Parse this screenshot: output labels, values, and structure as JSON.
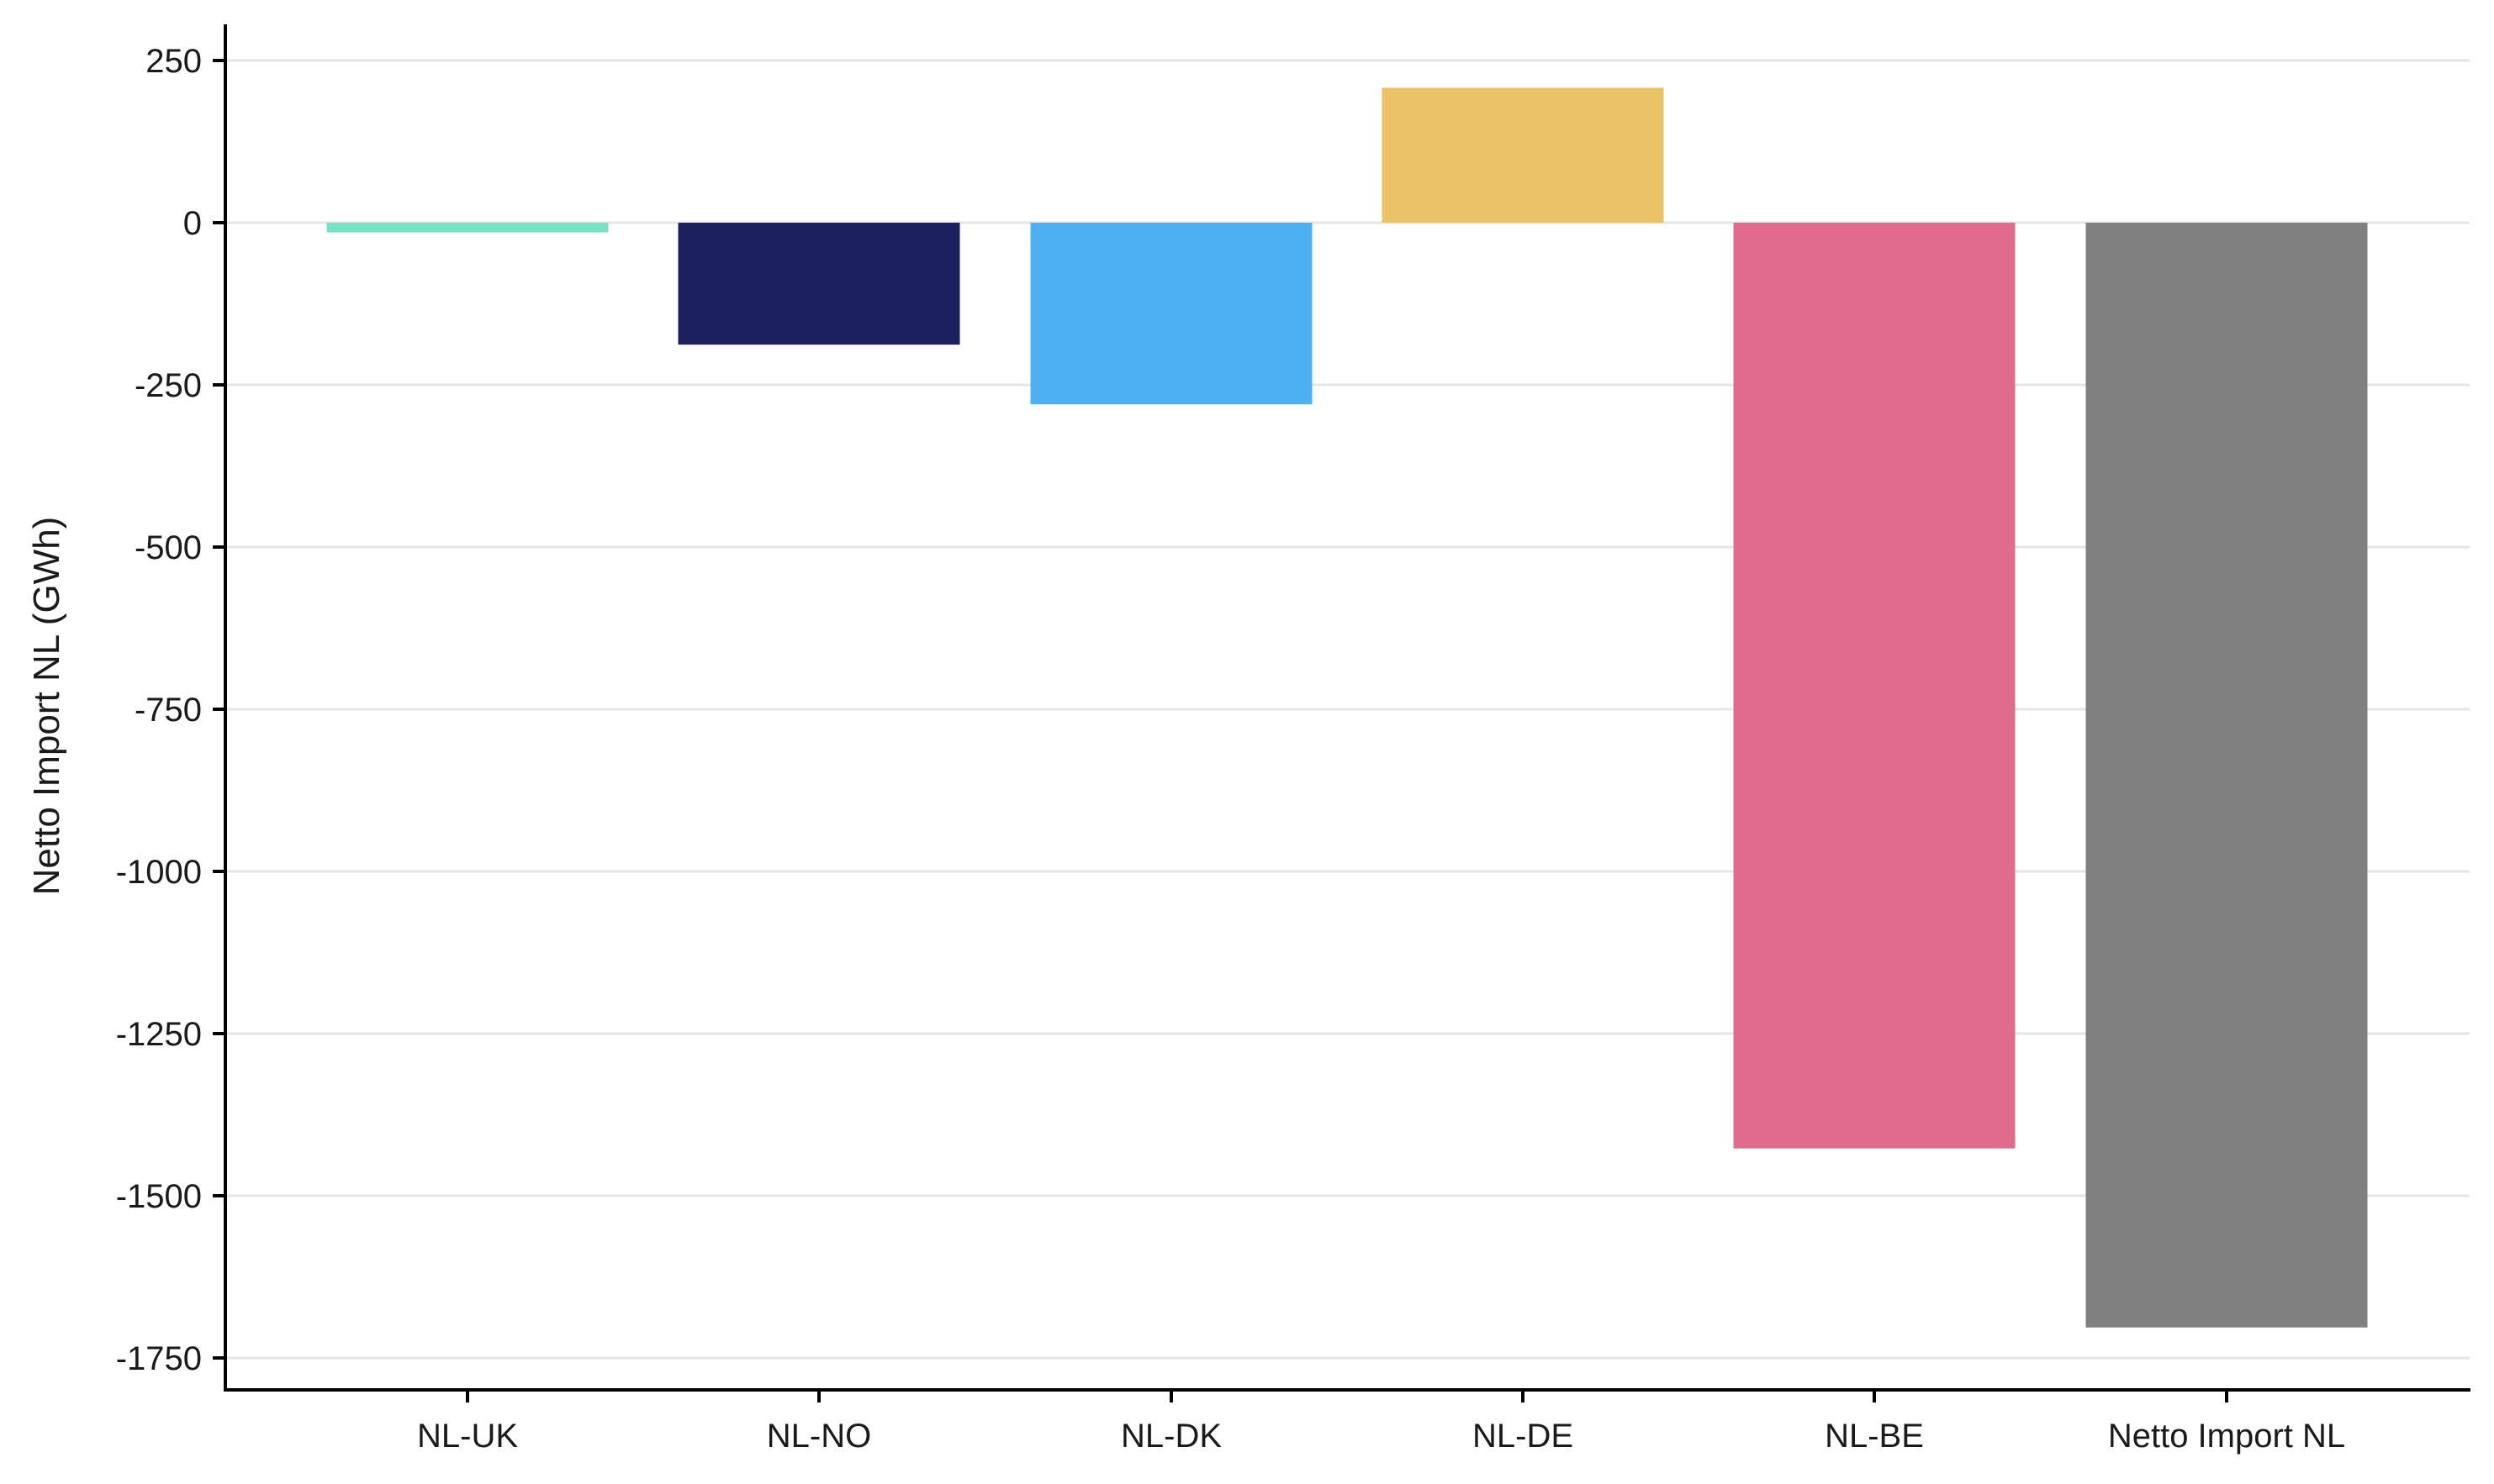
{
  "chart_data": {
    "type": "bar",
    "title": "",
    "xlabel": "",
    "ylabel": "Netto Import NL (GWh)",
    "categories": [
      "NL-UK",
      "NL-NO",
      "NL-DK",
      "NL-DE",
      "NL-BE",
      "Netto Import NL"
    ],
    "values": [
      -15,
      -188,
      -280,
      208,
      -1427,
      -1703
    ],
    "colors": [
      "#7ae0c6",
      "#1c215e",
      "#4db0f2",
      "#e9c267",
      "#df6c8c",
      "#808080"
    ],
    "yticks": [
      250,
      0,
      -250,
      -500,
      -750,
      -1000,
      -1250,
      -1500,
      -1750
    ],
    "ytick_labels": [
      "250",
      "0",
      "-250",
      "-500",
      "-750",
      "-1000",
      "-1250",
      "-1500",
      "-1750"
    ],
    "ylim": [
      -1800,
      320
    ],
    "grid": "horizontal",
    "legend": "none"
  }
}
